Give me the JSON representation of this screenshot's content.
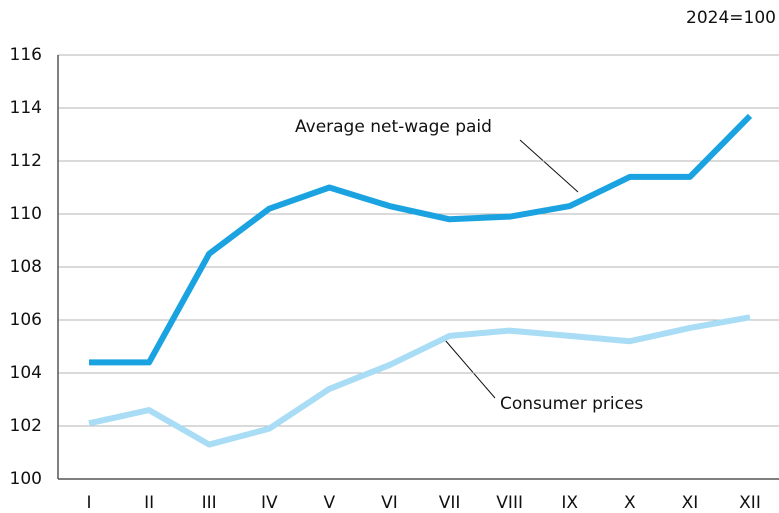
{
  "chart_data": {
    "type": "line",
    "note": "2024=100",
    "categories": [
      "I",
      "II",
      "III",
      "IV",
      "V",
      "VI",
      "VII",
      "VIII",
      "IX",
      "X",
      "XI",
      "XII"
    ],
    "series": [
      {
        "name": "Average net-wage paid",
        "color": "#1aa3e0",
        "values": [
          104.4,
          104.4,
          108.5,
          110.2,
          111.0,
          110.3,
          109.8,
          109.9,
          110.3,
          111.4,
          111.4,
          113.7
        ]
      },
      {
        "name": "Consumer prices",
        "color": "#a9dcf5",
        "values": [
          102.1,
          102.6,
          101.3,
          101.9,
          103.4,
          104.3,
          105.4,
          105.6,
          105.4,
          105.2,
          105.7,
          106.1
        ]
      }
    ],
    "ylim": [
      100,
      116
    ],
    "yticks": [
      100,
      102,
      104,
      106,
      108,
      110,
      112,
      114,
      116
    ],
    "grid": true
  }
}
